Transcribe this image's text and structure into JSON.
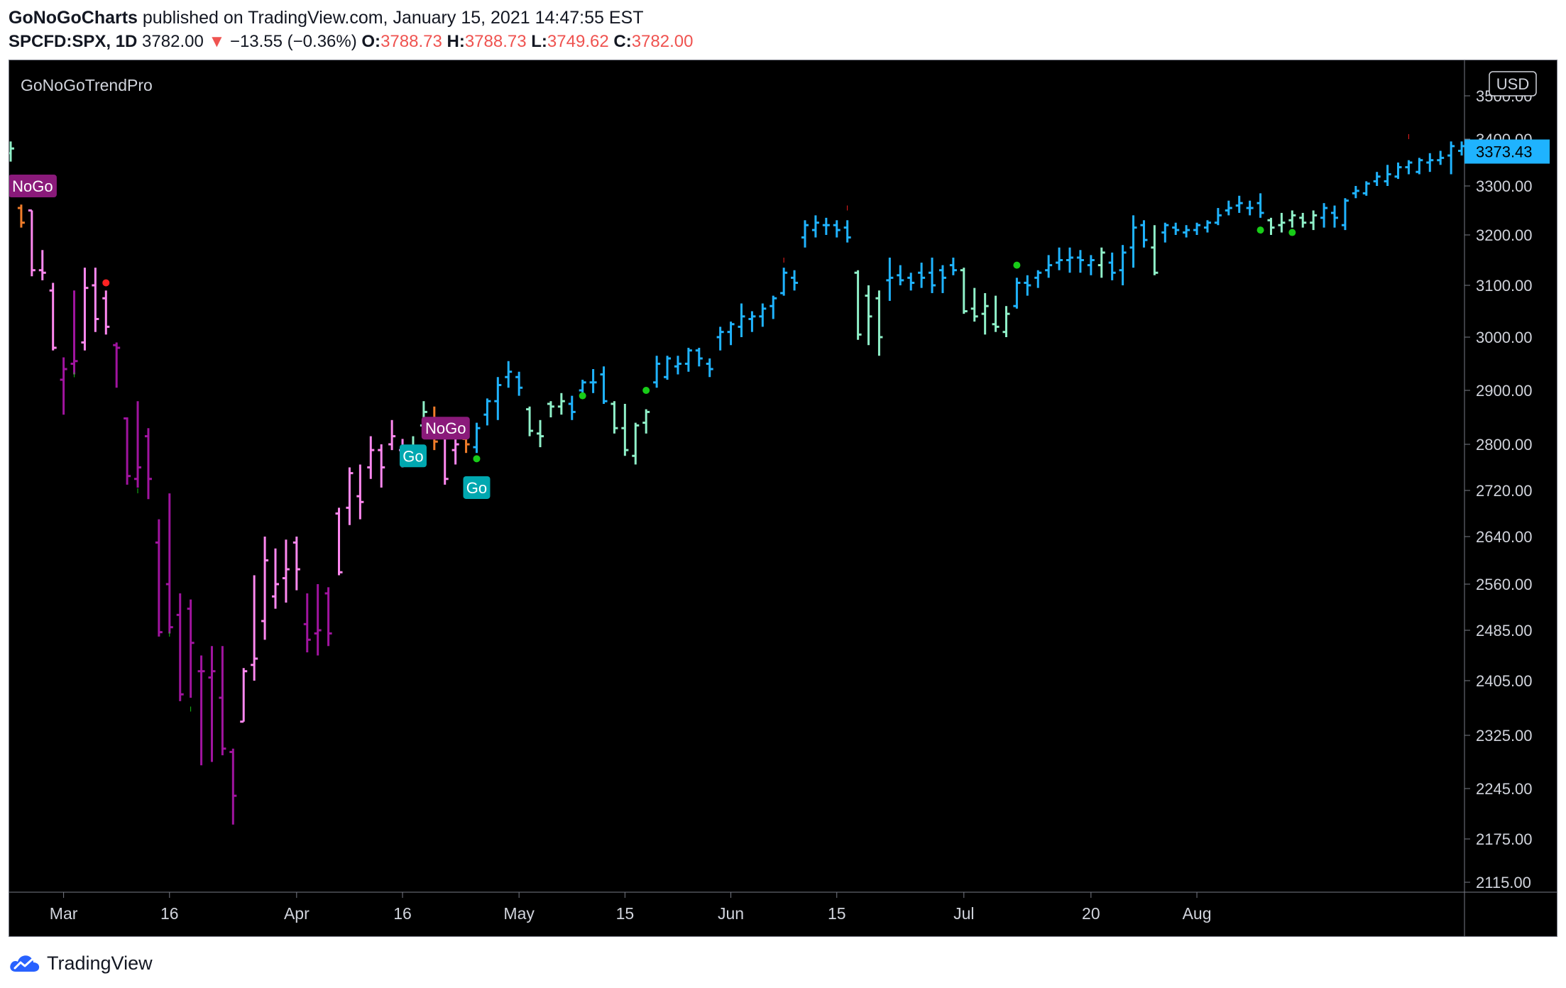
{
  "header": {
    "author": "GoNoGoCharts",
    "published": "published on TradingView.com, January 15, 2021 14:47:55 EST",
    "symbol": "SPCFD:SPX, 1D",
    "last": "3782.00",
    "change": "−13.55 (−0.36%)",
    "open_label": "O:",
    "open": "3788.73",
    "high_label": "H:",
    "high": "3788.73",
    "low_label": "L:",
    "low": "3749.62",
    "close_label": "C:",
    "close": "3782.00"
  },
  "colors": {
    "background": "#000000",
    "go_strong": "#1fb3ff",
    "go_weak": "#8ff0c8",
    "nogo_strong": "#a0149f",
    "nogo_weak": "#ff88f0",
    "amber": "#f07d2a",
    "price_badge": "#1fb3ff"
  },
  "footer": {
    "brand": "TradingView",
    "logo_icon": "tradingview-cloud-icon"
  },
  "chart_data": {
    "type": "ohlc-bar",
    "indicator": "GoNoGoTrendPro",
    "currency": "USD",
    "last_price_label": "3373.43",
    "y_ticks": [
      "2115.00",
      "2175.00",
      "2245.00",
      "2325.00",
      "2405.00",
      "2485.00",
      "2560.00",
      "2640.00",
      "2720.00",
      "2800.00",
      "2900.00",
      "3000.00",
      "3100.00",
      "3200.00",
      "3300.00",
      "3400.00",
      "3500.00"
    ],
    "x_ticks": [
      {
        "label": "Mar",
        "i": 5
      },
      {
        "label": "16",
        "i": 15
      },
      {
        "label": "Apr",
        "i": 27
      },
      {
        "label": "16",
        "i": 37
      },
      {
        "label": "May",
        "i": 48
      },
      {
        "label": "15",
        "i": 58
      },
      {
        "label": "Jun",
        "i": 68
      },
      {
        "label": "15",
        "i": 78
      },
      {
        "label": "Jul",
        "i": 90
      },
      {
        "label": "20",
        "i": 102
      },
      {
        "label": "Aug",
        "i": 112
      }
    ],
    "bars": [
      {
        "o": 3370,
        "h": 3395,
        "l": 3352,
        "c": 3380,
        "s": "gw"
      },
      {
        "o": 3255,
        "h": 3262,
        "l": 3215,
        "c": 3225,
        "s": "a"
      },
      {
        "o": 3250,
        "h": 3250,
        "l": 3118,
        "c": 3130,
        "s": "nw"
      },
      {
        "o": 3130,
        "h": 3170,
        "l": 3110,
        "c": 3125,
        "s": "nw"
      },
      {
        "o": 3090,
        "h": 3105,
        "l": 2975,
        "c": 2980,
        "s": "nw"
      },
      {
        "o": 2920,
        "h": 2962,
        "l": 2855,
        "c": 2940,
        "s": "ns"
      },
      {
        "o": 2950,
        "h": 3090,
        "l": 2930,
        "c": 2955,
        "s": "ns"
      },
      {
        "o": 2990,
        "h": 3135,
        "l": 2975,
        "c": 3095,
        "s": "nw"
      },
      {
        "o": 3100,
        "h": 3135,
        "l": 3010,
        "c": 3035,
        "s": "nw"
      },
      {
        "o": 3075,
        "h": 3090,
        "l": 3005,
        "c": 3020,
        "s": "nw"
      },
      {
        "o": 2985,
        "h": 2990,
        "l": 2905,
        "c": 2980,
        "s": "ns"
      },
      {
        "o": 2848,
        "h": 2850,
        "l": 2730,
        "c": 2745,
        "s": "ns"
      },
      {
        "o": 2740,
        "h": 2880,
        "l": 2725,
        "c": 2760,
        "s": "ns"
      },
      {
        "o": 2815,
        "h": 2830,
        "l": 2705,
        "c": 2740,
        "s": "ns"
      },
      {
        "o": 2630,
        "h": 2670,
        "l": 2475,
        "c": 2482,
        "s": "ns"
      },
      {
        "o": 2560,
        "h": 2715,
        "l": 2480,
        "c": 2490,
        "s": "ns"
      },
      {
        "o": 2510,
        "h": 2545,
        "l": 2375,
        "c": 2385,
        "s": "ns"
      },
      {
        "o": 2520,
        "h": 2535,
        "l": 2380,
        "c": 2465,
        "s": "ns"
      },
      {
        "o": 2420,
        "h": 2445,
        "l": 2280,
        "c": 2420,
        "s": "ns"
      },
      {
        "o": 2410,
        "h": 2460,
        "l": 2285,
        "c": 2420,
        "s": "ns"
      },
      {
        "o": 2380,
        "h": 2460,
        "l": 2295,
        "c": 2305,
        "s": "ns"
      },
      {
        "o": 2300,
        "h": 2305,
        "l": 2195,
        "c": 2235,
        "s": "ns"
      },
      {
        "o": 2345,
        "h": 2425,
        "l": 2345,
        "c": 2420,
        "s": "nw"
      },
      {
        "o": 2430,
        "h": 2575,
        "l": 2405,
        "c": 2440,
        "s": "nw"
      },
      {
        "o": 2500,
        "h": 2640,
        "l": 2470,
        "c": 2600,
        "s": "nw"
      },
      {
        "o": 2540,
        "h": 2620,
        "l": 2520,
        "c": 2560,
        "s": "nw"
      },
      {
        "o": 2570,
        "h": 2635,
        "l": 2530,
        "c": 2585,
        "s": "nw"
      },
      {
        "o": 2630,
        "h": 2640,
        "l": 2550,
        "c": 2585,
        "s": "nw"
      },
      {
        "o": 2495,
        "h": 2545,
        "l": 2450,
        "c": 2470,
        "s": "ns"
      },
      {
        "o": 2480,
        "h": 2560,
        "l": 2445,
        "c": 2485,
        "s": "ns"
      },
      {
        "o": 2545,
        "h": 2555,
        "l": 2460,
        "c": 2480,
        "s": "ns"
      },
      {
        "o": 2680,
        "h": 2690,
        "l": 2575,
        "c": 2580,
        "s": "nw"
      },
      {
        "o": 2690,
        "h": 2760,
        "l": 2660,
        "c": 2750,
        "s": "nw"
      },
      {
        "o": 2710,
        "h": 2765,
        "l": 2670,
        "c": 2700,
        "s": "nw"
      },
      {
        "o": 2760,
        "h": 2815,
        "l": 2740,
        "c": 2790,
        "s": "nw"
      },
      {
        "o": 2790,
        "h": 2800,
        "l": 2725,
        "c": 2760,
        "s": "nw"
      },
      {
        "o": 2800,
        "h": 2845,
        "l": 2790,
        "c": 2815,
        "s": "nw"
      },
      {
        "o": 2790,
        "h": 2810,
        "l": 2760,
        "c": 2795,
        "s": "nw"
      },
      {
        "o": 2780,
        "h": 2815,
        "l": 2765,
        "c": 2795,
        "s": "gw"
      },
      {
        "o": 2835,
        "h": 2880,
        "l": 2815,
        "c": 2860,
        "s": "gw"
      },
      {
        "o": 2845,
        "h": 2870,
        "l": 2790,
        "c": 2805,
        "s": "a"
      },
      {
        "o": 2815,
        "h": 2820,
        "l": 2730,
        "c": 2740,
        "s": "nw"
      },
      {
        "o": 2790,
        "h": 2810,
        "l": 2765,
        "c": 2800,
        "s": "nw"
      },
      {
        "o": 2810,
        "h": 2845,
        "l": 2785,
        "c": 2800,
        "s": "a"
      },
      {
        "o": 2795,
        "h": 2840,
        "l": 2785,
        "c": 2830,
        "s": "gs"
      },
      {
        "o": 2855,
        "h": 2885,
        "l": 2835,
        "c": 2880,
        "s": "gs"
      },
      {
        "o": 2880,
        "h": 2925,
        "l": 2845,
        "c": 2910,
        "s": "gs"
      },
      {
        "o": 2925,
        "h": 2955,
        "l": 2905,
        "c": 2935,
        "s": "gs"
      },
      {
        "o": 2925,
        "h": 2935,
        "l": 2890,
        "c": 2905,
        "s": "gs"
      },
      {
        "o": 2865,
        "h": 2870,
        "l": 2815,
        "c": 2825,
        "s": "gw"
      },
      {
        "o": 2820,
        "h": 2845,
        "l": 2795,
        "c": 2815,
        "s": "gw"
      },
      {
        "o": 2875,
        "h": 2880,
        "l": 2850,
        "c": 2870,
        "s": "gw"
      },
      {
        "o": 2870,
        "h": 2895,
        "l": 2855,
        "c": 2880,
        "s": "gw"
      },
      {
        "o": 2875,
        "h": 2890,
        "l": 2845,
        "c": 2860,
        "s": "gs"
      },
      {
        "o": 2900,
        "h": 2920,
        "l": 2885,
        "c": 2915,
        "s": "gs"
      },
      {
        "o": 2915,
        "h": 2940,
        "l": 2895,
        "c": 2915,
        "s": "gs"
      },
      {
        "o": 2930,
        "h": 2945,
        "l": 2875,
        "c": 2880,
        "s": "gs"
      },
      {
        "o": 2875,
        "h": 2880,
        "l": 2820,
        "c": 2830,
        "s": "gw"
      },
      {
        "o": 2830,
        "h": 2875,
        "l": 2780,
        "c": 2790,
        "s": "gw"
      },
      {
        "o": 2780,
        "h": 2840,
        "l": 2765,
        "c": 2835,
        "s": "gw"
      },
      {
        "o": 2840,
        "h": 2865,
        "l": 2820,
        "c": 2860,
        "s": "gw"
      },
      {
        "o": 2915,
        "h": 2965,
        "l": 2905,
        "c": 2950,
        "s": "gs"
      },
      {
        "o": 2925,
        "h": 2965,
        "l": 2920,
        "c": 2960,
        "s": "gs"
      },
      {
        "o": 2945,
        "h": 2965,
        "l": 2930,
        "c": 2950,
        "s": "gs"
      },
      {
        "o": 2950,
        "h": 2980,
        "l": 2935,
        "c": 2975,
        "s": "gs"
      },
      {
        "o": 2975,
        "h": 2980,
        "l": 2945,
        "c": 2960,
        "s": "gs"
      },
      {
        "o": 2950,
        "h": 2960,
        "l": 2925,
        "c": 2940,
        "s": "gs"
      },
      {
        "o": 3000,
        "h": 3020,
        "l": 2975,
        "c": 3010,
        "s": "gs"
      },
      {
        "o": 3010,
        "h": 3030,
        "l": 2985,
        "c": 3025,
        "s": "gs"
      },
      {
        "o": 3020,
        "h": 3065,
        "l": 3000,
        "c": 3040,
        "s": "gs"
      },
      {
        "o": 3035,
        "h": 3050,
        "l": 3010,
        "c": 3040,
        "s": "gs"
      },
      {
        "o": 3040,
        "h": 3065,
        "l": 3020,
        "c": 3055,
        "s": "gs"
      },
      {
        "o": 3060,
        "h": 3080,
        "l": 3035,
        "c": 3075,
        "s": "gs"
      },
      {
        "o": 3085,
        "h": 3135,
        "l": 3080,
        "c": 3125,
        "s": "gs"
      },
      {
        "o": 3115,
        "h": 3130,
        "l": 3090,
        "c": 3105,
        "s": "gs"
      },
      {
        "o": 3195,
        "h": 3230,
        "l": 3175,
        "c": 3220,
        "s": "gs"
      },
      {
        "o": 3210,
        "h": 3240,
        "l": 3195,
        "c": 3225,
        "s": "gs"
      },
      {
        "o": 3220,
        "h": 3235,
        "l": 3200,
        "c": 3220,
        "s": "gs"
      },
      {
        "o": 3220,
        "h": 3230,
        "l": 3195,
        "c": 3210,
        "s": "gs"
      },
      {
        "o": 3215,
        "h": 3230,
        "l": 3185,
        "c": 3195,
        "s": "gs"
      },
      {
        "o": 3125,
        "h": 3130,
        "l": 2995,
        "c": 3005,
        "s": "gw"
      },
      {
        "o": 3080,
        "h": 3100,
        "l": 2985,
        "c": 3040,
        "s": "gw"
      },
      {
        "o": 3075,
        "h": 3090,
        "l": 2965,
        "c": 3000,
        "s": "gw"
      },
      {
        "o": 3110,
        "h": 3155,
        "l": 3070,
        "c": 3115,
        "s": "gs"
      },
      {
        "o": 3120,
        "h": 3140,
        "l": 3100,
        "c": 3110,
        "s": "gs"
      },
      {
        "o": 3115,
        "h": 3125,
        "l": 3090,
        "c": 3105,
        "s": "gs"
      },
      {
        "o": 3125,
        "h": 3145,
        "l": 3095,
        "c": 3115,
        "s": "gs"
      },
      {
        "o": 3125,
        "h": 3155,
        "l": 3085,
        "c": 3100,
        "s": "gs"
      },
      {
        "o": 3130,
        "h": 3140,
        "l": 3085,
        "c": 3115,
        "s": "gs"
      },
      {
        "o": 3140,
        "h": 3155,
        "l": 3120,
        "c": 3130,
        "s": "gs"
      },
      {
        "o": 3130,
        "h": 3135,
        "l": 3045,
        "c": 3050,
        "s": "gw"
      },
      {
        "o": 3055,
        "h": 3095,
        "l": 3030,
        "c": 3040,
        "s": "gw"
      },
      {
        "o": 3045,
        "h": 3085,
        "l": 3005,
        "c": 3060,
        "s": "gw"
      },
      {
        "o": 3025,
        "h": 3080,
        "l": 3010,
        "c": 3020,
        "s": "gw"
      },
      {
        "o": 3010,
        "h": 3060,
        "l": 3000,
        "c": 3045,
        "s": "gw"
      },
      {
        "o": 3060,
        "h": 3115,
        "l": 3055,
        "c": 3105,
        "s": "gs"
      },
      {
        "o": 3105,
        "h": 3120,
        "l": 3080,
        "c": 3100,
        "s": "gs"
      },
      {
        "o": 3115,
        "h": 3130,
        "l": 3095,
        "c": 3125,
        "s": "gs"
      },
      {
        "o": 3130,
        "h": 3160,
        "l": 3115,
        "c": 3140,
        "s": "gs"
      },
      {
        "o": 3145,
        "h": 3175,
        "l": 3130,
        "c": 3150,
        "s": "gs"
      },
      {
        "o": 3150,
        "h": 3175,
        "l": 3125,
        "c": 3155,
        "s": "gs"
      },
      {
        "o": 3155,
        "h": 3170,
        "l": 3125,
        "c": 3150,
        "s": "gs"
      },
      {
        "o": 3140,
        "h": 3160,
        "l": 3120,
        "c": 3150,
        "s": "gs"
      },
      {
        "o": 3140,
        "h": 3175,
        "l": 3115,
        "c": 3165,
        "s": "gw"
      },
      {
        "o": 3145,
        "h": 3165,
        "l": 3110,
        "c": 3125,
        "s": "gs"
      },
      {
        "o": 3130,
        "h": 3180,
        "l": 3100,
        "c": 3165,
        "s": "gs"
      },
      {
        "o": 3175,
        "h": 3240,
        "l": 3135,
        "c": 3215,
        "s": "gs"
      },
      {
        "o": 3220,
        "h": 3230,
        "l": 3175,
        "c": 3190,
        "s": "gs"
      },
      {
        "o": 3175,
        "h": 3220,
        "l": 3120,
        "c": 3125,
        "s": "gw"
      },
      {
        "o": 3205,
        "h": 3225,
        "l": 3185,
        "c": 3220,
        "s": "gs"
      },
      {
        "o": 3215,
        "h": 3225,
        "l": 3200,
        "c": 3210,
        "s": "gs"
      },
      {
        "o": 3205,
        "h": 3220,
        "l": 3195,
        "c": 3210,
        "s": "gs"
      },
      {
        "o": 3210,
        "h": 3225,
        "l": 3200,
        "c": 3220,
        "s": "gs"
      },
      {
        "o": 3215,
        "h": 3230,
        "l": 3205,
        "c": 3225,
        "s": "gs"
      },
      {
        "o": 3225,
        "h": 3255,
        "l": 3220,
        "c": 3240,
        "s": "gs"
      },
      {
        "o": 3250,
        "h": 3270,
        "l": 3240,
        "c": 3255,
        "s": "gs"
      },
      {
        "o": 3260,
        "h": 3280,
        "l": 3245,
        "c": 3265,
        "s": "gs"
      },
      {
        "o": 3255,
        "h": 3270,
        "l": 3240,
        "c": 3255,
        "s": "gs"
      },
      {
        "o": 3265,
        "h": 3285,
        "l": 3235,
        "c": 3245,
        "s": "gs"
      },
      {
        "o": 3230,
        "h": 3235,
        "l": 3200,
        "c": 3215,
        "s": "gw"
      },
      {
        "o": 3220,
        "h": 3245,
        "l": 3205,
        "c": 3225,
        "s": "gw"
      },
      {
        "o": 3230,
        "h": 3250,
        "l": 3215,
        "c": 3240,
        "s": "gw"
      },
      {
        "o": 3235,
        "h": 3245,
        "l": 3215,
        "c": 3225,
        "s": "gw"
      },
      {
        "o": 3225,
        "h": 3250,
        "l": 3210,
        "c": 3240,
        "s": "gw"
      },
      {
        "o": 3235,
        "h": 3265,
        "l": 3215,
        "c": 3255,
        "s": "gs"
      },
      {
        "o": 3245,
        "h": 3260,
        "l": 3215,
        "c": 3235,
        "s": "gs"
      },
      {
        "o": 3220,
        "h": 3275,
        "l": 3210,
        "c": 3270,
        "s": "gs"
      },
      {
        "o": 3285,
        "h": 3300,
        "l": 3275,
        "c": 3290,
        "s": "gs"
      },
      {
        "o": 3285,
        "h": 3310,
        "l": 3280,
        "c": 3305,
        "s": "gs"
      },
      {
        "o": 3310,
        "h": 3330,
        "l": 3300,
        "c": 3320,
        "s": "gs"
      },
      {
        "o": 3310,
        "h": 3345,
        "l": 3300,
        "c": 3325,
        "s": "gs"
      },
      {
        "o": 3320,
        "h": 3350,
        "l": 3315,
        "c": 3340,
        "s": "gs"
      },
      {
        "o": 3340,
        "h": 3355,
        "l": 3325,
        "c": 3350,
        "s": "gs"
      },
      {
        "o": 3330,
        "h": 3360,
        "l": 3325,
        "c": 3355,
        "s": "gs"
      },
      {
        "o": 3350,
        "h": 3370,
        "l": 3330,
        "c": 3355,
        "s": "gs"
      },
      {
        "o": 3355,
        "h": 3375,
        "l": 3345,
        "c": 3360,
        "s": "gs"
      },
      {
        "o": 3365,
        "h": 3395,
        "l": 3325,
        "c": 3385,
        "s": "gs"
      },
      {
        "o": 3375,
        "h": 3395,
        "l": 3365,
        "c": 3385,
        "s": "gs"
      },
      {
        "o": 3370,
        "h": 3390,
        "l": 3360,
        "c": 3373,
        "s": "gs"
      }
    ],
    "signals": [
      {
        "label": "NoGo",
        "i": 1,
        "price": 3300,
        "style": "nogo"
      },
      {
        "label": "Go",
        "i": 38,
        "price": 2780,
        "style": "go"
      },
      {
        "label": "NoGo",
        "i": 40,
        "price": 2830,
        "style": "nogo"
      },
      {
        "label": "Go",
        "i": 44,
        "price": 2725,
        "style": "go"
      }
    ],
    "dots": [
      {
        "i": 9,
        "price": 3105,
        "color": "#ff2222"
      },
      {
        "i": 44,
        "price": 2775,
        "color": "#18cc18"
      },
      {
        "i": 54,
        "price": 2890,
        "color": "#18cc18"
      },
      {
        "i": 60,
        "price": 2900,
        "color": "#18cc18"
      },
      {
        "i": 95,
        "price": 3140,
        "color": "#18cc18"
      },
      {
        "i": 118,
        "price": 3210,
        "color": "#18cc18"
      },
      {
        "i": 121,
        "price": 3205,
        "color": "#18cc18"
      }
    ],
    "ticks": [
      {
        "i": 6,
        "price": 2925,
        "color": "#18cc18"
      },
      {
        "i": 12,
        "price": 2715,
        "color": "#18cc18"
      },
      {
        "i": 15,
        "price": 2475,
        "color": "#18cc18"
      },
      {
        "i": 17,
        "price": 2360,
        "color": "#18cc18"
      },
      {
        "i": 73,
        "price": 3145,
        "color": "#ff2222"
      },
      {
        "i": 79,
        "price": 3250,
        "color": "#ff2222"
      },
      {
        "i": 132,
        "price": 3400,
        "color": "#ff2222"
      }
    ]
  }
}
